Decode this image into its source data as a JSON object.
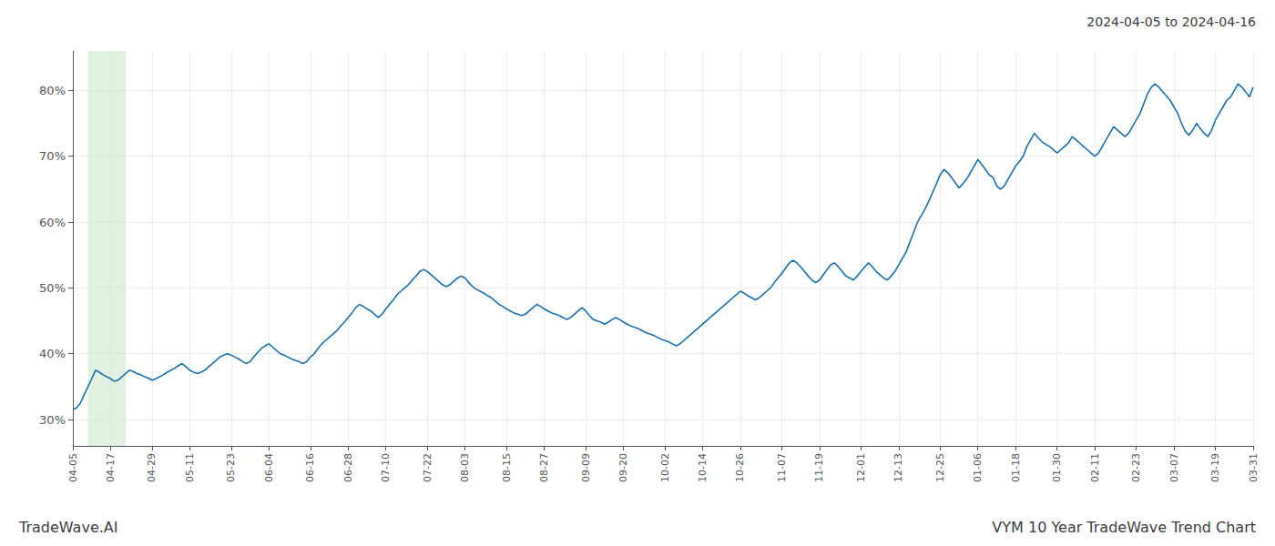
{
  "chart_data": {
    "type": "line",
    "title": "VYM 10 Year TradeWave Trend Chart",
    "subtitle": "2024-04-05 to 2024-04-16",
    "annotations": [
      "TradeWave.AI"
    ],
    "color": "#1a6faf",
    "grid": true,
    "ylim": [
      26,
      86
    ],
    "yticks": [
      {
        "value": 30,
        "label": "30%"
      },
      {
        "value": 40,
        "label": "40%"
      },
      {
        "value": 50,
        "label": "50%"
      },
      {
        "value": 60,
        "label": "60%"
      },
      {
        "value": 70,
        "label": "70%"
      },
      {
        "value": 80,
        "label": "80%"
      }
    ],
    "highlight": {
      "start": 4,
      "end": 14,
      "color": "#c8e6c9"
    },
    "categories": [
      "04-05",
      null,
      null,
      null,
      null,
      null,
      null,
      null,
      null,
      null,
      "04-17",
      null,
      null,
      null,
      null,
      null,
      null,
      null,
      null,
      null,
      null,
      "04-29",
      null,
      null,
      null,
      null,
      null,
      null,
      null,
      null,
      null,
      "05-11",
      null,
      null,
      null,
      null,
      null,
      null,
      null,
      null,
      null,
      null,
      "05-23",
      null,
      null,
      null,
      null,
      null,
      null,
      null,
      null,
      null,
      "06-04",
      null,
      null,
      null,
      null,
      null,
      null,
      null,
      null,
      null,
      null,
      "06-16",
      null,
      null,
      null,
      null,
      null,
      null,
      null,
      null,
      null,
      "06-28",
      null,
      null,
      null,
      null,
      null,
      null,
      null,
      null,
      null,
      "07-10",
      null,
      null,
      null,
      null,
      null,
      null,
      null,
      null,
      null,
      null,
      "07-22",
      null,
      null,
      null,
      null,
      null,
      null,
      null,
      null,
      null,
      "08-03",
      null,
      null,
      null,
      null,
      null,
      null,
      null,
      null,
      null,
      null,
      "08-15",
      null,
      null,
      null,
      null,
      null,
      null,
      null,
      null,
      null,
      "08-27",
      null,
      null,
      null,
      null,
      null,
      null,
      null,
      null,
      null,
      null,
      "09-09",
      null,
      null,
      null,
      null,
      null,
      null,
      null,
      null,
      null,
      "09-20",
      null,
      null,
      null,
      null,
      null,
      null,
      null,
      null,
      null,
      null,
      "10-02",
      null,
      null,
      null,
      null,
      null,
      null,
      null,
      null,
      null,
      "10-14",
      null,
      null,
      null,
      null,
      null,
      null,
      null,
      null,
      null,
      "10-26",
      null,
      null,
      null,
      null,
      null,
      null,
      null,
      null,
      null,
      null,
      "11-07",
      null,
      null,
      null,
      null,
      null,
      null,
      null,
      null,
      null,
      "11-19",
      null,
      null,
      null,
      null,
      null,
      null,
      null,
      null,
      null,
      null,
      "12-01",
      null,
      null,
      null,
      null,
      null,
      null,
      null,
      null,
      null,
      "12-13",
      null,
      null,
      null,
      null,
      null,
      null,
      null,
      null,
      null,
      null,
      "12-25",
      null,
      null,
      null,
      null,
      null,
      null,
      null,
      null,
      null,
      "01-06",
      null,
      null,
      null,
      null,
      null,
      null,
      null,
      null,
      null,
      "01-18",
      null,
      null,
      null,
      null,
      null,
      null,
      null,
      null,
      null,
      null,
      "01-30",
      null,
      null,
      null,
      null,
      null,
      null,
      null,
      null,
      null,
      "02-11",
      null,
      null,
      null,
      null,
      null,
      null,
      null,
      null,
      null,
      null,
      "02-23",
      null,
      null,
      null,
      null,
      null,
      null,
      null,
      null,
      null,
      "03-07",
      null,
      null,
      null,
      null,
      null,
      null,
      null,
      null,
      null,
      null,
      "03-19",
      null,
      null,
      null,
      null,
      null,
      null,
      null,
      null,
      null,
      "03-31"
    ],
    "values": [
      31.5,
      31.8,
      32.5,
      33.8,
      35.0,
      36.2,
      37.5,
      37.2,
      36.8,
      36.5,
      36.2,
      35.8,
      36.0,
      36.5,
      37.0,
      37.5,
      37.3,
      37.0,
      36.8,
      36.5,
      36.3,
      36.0,
      36.2,
      36.5,
      36.8,
      37.2,
      37.5,
      37.8,
      38.2,
      38.5,
      38.0,
      37.5,
      37.2,
      37.0,
      37.2,
      37.5,
      38.0,
      38.5,
      39.0,
      39.5,
      39.8,
      40.0,
      39.8,
      39.5,
      39.2,
      38.8,
      38.5,
      38.8,
      39.5,
      40.2,
      40.8,
      41.2,
      41.5,
      41.0,
      40.5,
      40.0,
      39.8,
      39.5,
      39.2,
      39.0,
      38.8,
      38.5,
      38.8,
      39.5,
      40.0,
      40.8,
      41.5,
      42.0,
      42.5,
      43.0,
      43.5,
      44.2,
      44.8,
      45.5,
      46.2,
      47.0,
      47.5,
      47.2,
      46.8,
      46.5,
      46.0,
      45.5,
      46.0,
      46.8,
      47.5,
      48.2,
      49.0,
      49.5,
      50.0,
      50.5,
      51.2,
      51.8,
      52.5,
      52.8,
      52.5,
      52.0,
      51.5,
      51.0,
      50.5,
      50.2,
      50.5,
      51.0,
      51.5,
      51.8,
      51.5,
      50.8,
      50.2,
      49.8,
      49.5,
      49.2,
      48.8,
      48.5,
      48.0,
      47.5,
      47.2,
      46.8,
      46.5,
      46.2,
      46.0,
      45.8,
      46.0,
      46.5,
      47.0,
      47.5,
      47.2,
      46.8,
      46.5,
      46.2,
      46.0,
      45.8,
      45.5,
      45.2,
      45.5,
      46.0,
      46.5,
      47.0,
      46.5,
      45.8,
      45.2,
      45.0,
      44.8,
      44.5,
      44.8,
      45.2,
      45.5,
      45.2,
      44.8,
      44.5,
      44.2,
      44.0,
      43.8,
      43.5,
      43.2,
      43.0,
      42.8,
      42.5,
      42.2,
      42.0,
      41.8,
      41.5,
      41.2,
      41.5,
      42.0,
      42.5,
      43.0,
      43.5,
      44.0,
      44.5,
      45.0,
      45.5,
      46.0,
      46.5,
      47.0,
      47.5,
      48.0,
      48.5,
      49.0,
      49.5,
      49.2,
      48.8,
      48.5,
      48.2,
      48.5,
      49.0,
      49.5,
      50.0,
      50.8,
      51.5,
      52.2,
      53.0,
      53.8,
      54.2,
      53.8,
      53.2,
      52.5,
      51.8,
      51.2,
      50.8,
      51.2,
      52.0,
      52.8,
      53.5,
      53.8,
      53.2,
      52.5,
      51.8,
      51.5,
      51.2,
      51.8,
      52.5,
      53.2,
      53.8,
      53.2,
      52.5,
      52.0,
      51.5,
      51.2,
      51.8,
      52.5,
      53.5,
      54.5,
      55.5,
      57.0,
      58.5,
      60.0,
      61.0,
      62.0,
      63.2,
      64.5,
      65.8,
      67.2,
      68.0,
      67.5,
      66.8,
      66.0,
      65.2,
      65.8,
      66.5,
      67.5,
      68.5,
      69.5,
      68.8,
      68.0,
      67.2,
      66.8,
      65.5,
      65.0,
      65.5,
      66.5,
      67.5,
      68.5,
      69.2,
      70.0,
      71.5,
      72.5,
      73.5,
      72.8,
      72.2,
      71.8,
      71.5,
      71.0,
      70.5,
      71.0,
      71.5,
      72.0,
      73.0,
      72.5,
      72.0,
      71.5,
      71.0,
      70.5,
      70.0,
      70.5,
      71.5,
      72.5,
      73.5,
      74.5,
      74.0,
      73.5,
      73.0,
      73.5,
      74.5,
      75.5,
      76.5,
      78.0,
      79.5,
      80.5,
      81.0,
      80.5,
      79.8,
      79.2,
      78.5,
      77.5,
      76.5,
      75.0,
      73.8,
      73.2,
      74.0,
      75.0,
      74.2,
      73.5,
      73.0,
      74.0,
      75.5,
      76.5,
      77.5,
      78.5,
      79.0,
      80.0,
      81.0,
      80.5,
      79.8,
      79.0,
      80.5
    ]
  }
}
